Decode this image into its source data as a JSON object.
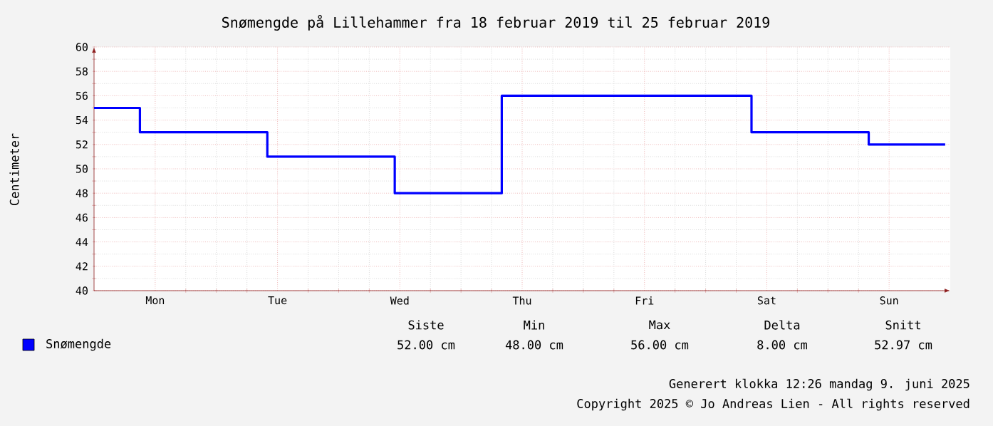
{
  "chart_data": {
    "type": "step",
    "title": "Snømengde på Lillehammer fra 18 februar 2019 til 25 februar 2019",
    "ylabel": "Centimeter",
    "categories": [
      null,
      null,
      null,
      null,
      null,
      null,
      null,
      null,
      null,
      null,
      null,
      null,
      "Mon",
      null,
      null,
      null,
      null,
      null,
      null,
      null,
      null,
      null,
      null,
      null,
      null,
      null,
      null,
      null,
      null,
      null,
      null,
      null,
      null,
      null,
      null,
      null,
      "Tue",
      null,
      null,
      null,
      null,
      null,
      null,
      null,
      null,
      null,
      null,
      null,
      null,
      null,
      null,
      null,
      null,
      null,
      null,
      null,
      null,
      null,
      null,
      null,
      "Wed",
      null,
      null,
      null,
      null,
      null,
      null,
      null,
      null,
      null,
      null,
      null,
      null,
      null,
      null,
      null,
      null,
      null,
      null,
      null,
      null,
      null,
      null,
      null,
      "Thu",
      null,
      null,
      null,
      null,
      null,
      null,
      null,
      null,
      null,
      null,
      null,
      null,
      null,
      null,
      null,
      null,
      null,
      null,
      null,
      null,
      null,
      null,
      null,
      "Fri",
      null,
      null,
      null,
      null,
      null,
      null,
      null,
      null,
      null,
      null,
      null,
      null,
      null,
      null,
      null,
      null,
      null,
      null,
      null,
      null,
      null,
      null,
      null,
      "Sat",
      null,
      null,
      null,
      null,
      null,
      null,
      null,
      null,
      null,
      null,
      null,
      null,
      null,
      null,
      null,
      null,
      null,
      null,
      null,
      null,
      null,
      null,
      null,
      "Sun",
      null,
      null,
      null,
      null,
      null,
      null,
      null,
      null,
      null,
      null,
      null
    ],
    "series": [
      {
        "name": "Snømengde",
        "color": "#0000ff",
        "values": [
          55,
          55,
          55,
          55,
          55,
          55,
          55,
          55,
          55,
          53,
          53,
          53,
          53,
          53,
          53,
          53,
          53,
          53,
          53,
          53,
          53,
          53,
          53,
          53,
          53,
          53,
          53,
          53,
          53,
          53,
          53,
          53,
          53,
          53,
          51,
          51,
          51,
          51,
          51,
          51,
          51,
          51,
          51,
          51,
          51,
          51,
          51,
          51,
          51,
          51,
          51,
          51,
          51,
          51,
          51,
          51,
          51,
          51,
          51,
          48,
          48,
          48,
          48,
          48,
          48,
          48,
          48,
          48,
          48,
          48,
          48,
          48,
          48,
          48,
          48,
          48,
          48,
          48,
          48,
          48,
          56,
          56,
          56,
          56,
          56,
          56,
          56,
          56,
          56,
          56,
          56,
          56,
          56,
          56,
          56,
          56,
          56,
          56,
          56,
          56,
          56,
          56,
          56,
          56,
          56,
          56,
          56,
          56,
          56,
          56,
          56,
          56,
          56,
          56,
          56,
          56,
          56,
          56,
          56,
          56,
          56,
          56,
          56,
          56,
          56,
          56,
          56,
          56,
          56,
          53,
          53,
          53,
          53,
          53,
          53,
          53,
          53,
          53,
          53,
          53,
          53,
          53,
          53,
          53,
          53,
          53,
          53,
          53,
          53,
          53,
          53,
          53,
          52,
          52,
          52,
          52,
          52,
          52,
          52,
          52,
          52,
          52,
          52,
          52,
          52,
          52,
          52,
          52
        ]
      }
    ],
    "ylim": [
      40,
      60
    ],
    "yticks": [
      40,
      42,
      44,
      46,
      48,
      50,
      52,
      54,
      56,
      58,
      60
    ],
    "grid": true,
    "legend": "bottom left",
    "annotations": [
      "Siste",
      "Min",
      "Max",
      "Delta",
      "Snitt",
      "52.00 cm",
      "48.00 cm",
      "56.00 cm",
      "8.00 cm",
      "52.97 cm",
      "Generert klokka 12:26 mandag 9. juni 2025",
      "Copyright 2025 © Jo Andreas Lien - All rights reserved"
    ]
  }
}
